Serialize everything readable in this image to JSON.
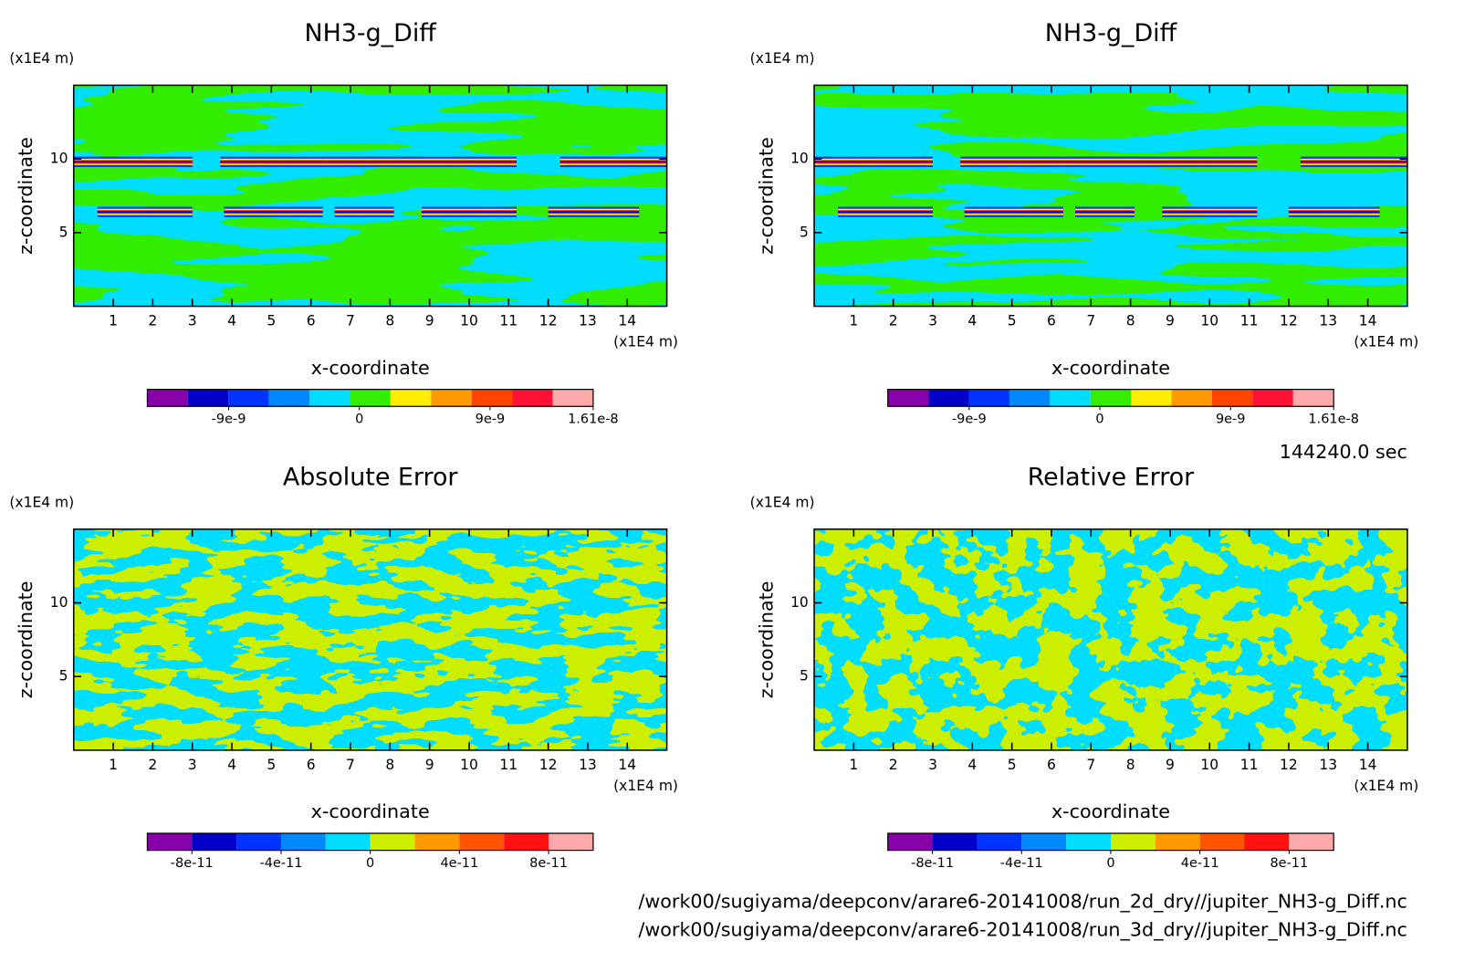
{
  "chart_data": [
    {
      "type": "contour",
      "title": "NH3-g_Diff",
      "xlabel": "x-coordinate",
      "ylabel": "z-coordinate",
      "xunit": "(x1E4 m)",
      "yunit": "(x1E4 m)",
      "xlim": [
        0,
        15
      ],
      "ylim": [
        0,
        15
      ],
      "xticks": [
        1,
        2,
        3,
        4,
        5,
        6,
        7,
        8,
        9,
        10,
        11,
        12,
        13,
        14
      ],
      "yticks": [
        5,
        10
      ],
      "colorbar": {
        "lim": [
          -1.46e-08,
          1.61e-08
        ],
        "ticks": [
          -9e-09,
          0,
          9e-09,
          1.61e-08
        ],
        "colors": [
          "#8800aa",
          "#0000c8",
          "#0033ff",
          "#0088ff",
          "#00ddff",
          "#33ee00",
          "#ffee00",
          "#ff9900",
          "#ff4400",
          "#ff1133",
          "#ffaaaa"
        ]
      }
    },
    {
      "type": "contour",
      "title": "NH3-g_Diff",
      "xlabel": "x-coordinate",
      "ylabel": "z-coordinate",
      "xunit": "(x1E4 m)",
      "yunit": "(x1E4 m)",
      "xlim": [
        0,
        15
      ],
      "ylim": [
        0,
        15
      ],
      "xticks": [
        1,
        2,
        3,
        4,
        5,
        6,
        7,
        8,
        9,
        10,
        11,
        12,
        13,
        14
      ],
      "yticks": [
        5,
        10
      ],
      "colorbar": {
        "lim": [
          -1.46e-08,
          1.61e-08
        ],
        "ticks": [
          -9e-09,
          0,
          9e-09,
          1.61e-08
        ],
        "colors": [
          "#8800aa",
          "#0000c8",
          "#0033ff",
          "#0088ff",
          "#00ddff",
          "#33ee00",
          "#ffee00",
          "#ff9900",
          "#ff4400",
          "#ff1133",
          "#ffaaaa"
        ]
      }
    },
    {
      "type": "contour",
      "title": "Absolute Error",
      "xlabel": "x-coordinate",
      "ylabel": "z-coordinate",
      "xunit": "(x1E4 m)",
      "yunit": "(x1E4 m)",
      "xlim": [
        0,
        15
      ],
      "ylim": [
        0,
        15
      ],
      "xticks": [
        1,
        2,
        3,
        4,
        5,
        6,
        7,
        8,
        9,
        10,
        11,
        12,
        13,
        14
      ],
      "yticks": [
        5,
        10
      ],
      "colorbar": {
        "lim": [
          -1e-10,
          1e-10
        ],
        "ticks": [
          -8e-11,
          -4e-11,
          0,
          4e-11,
          8e-11
        ],
        "colors": [
          "#8800aa",
          "#0000c8",
          "#0033ff",
          "#0088ff",
          "#00ddff",
          "#ccf000",
          "#ff9900",
          "#ff5500",
          "#ff1111",
          "#ffaaaa"
        ]
      }
    },
    {
      "type": "contour",
      "title": "Relative Error",
      "xlabel": "x-coordinate",
      "ylabel": "z-coordinate",
      "xunit": "(x1E4 m)",
      "yunit": "(x1E4 m)",
      "xlim": [
        0,
        15
      ],
      "ylim": [
        0,
        15
      ],
      "xticks": [
        1,
        2,
        3,
        4,
        5,
        6,
        7,
        8,
        9,
        10,
        11,
        12,
        13,
        14
      ],
      "yticks": [
        5,
        10
      ],
      "colorbar": {
        "lim": [
          -1e-10,
          1e-10
        ],
        "ticks": [
          -8e-11,
          -4e-11,
          0,
          4e-11,
          8e-11
        ],
        "colors": [
          "#8800aa",
          "#0000c8",
          "#0033ff",
          "#0088ff",
          "#00ddff",
          "#ccf000",
          "#ff9900",
          "#ff5500",
          "#ff1111",
          "#ffaaaa"
        ]
      }
    }
  ],
  "annotations": {
    "time": "144240.0 sec",
    "files": [
      "/work00/sugiyama/deepconv/arare6-20141008/run_2d_dry//jupiter_NH3-g_Diff.nc",
      "/work00/sugiyama/deepconv/arare6-20141008/run_3d_dry//jupiter_NH3-g_Diff.nc"
    ]
  }
}
